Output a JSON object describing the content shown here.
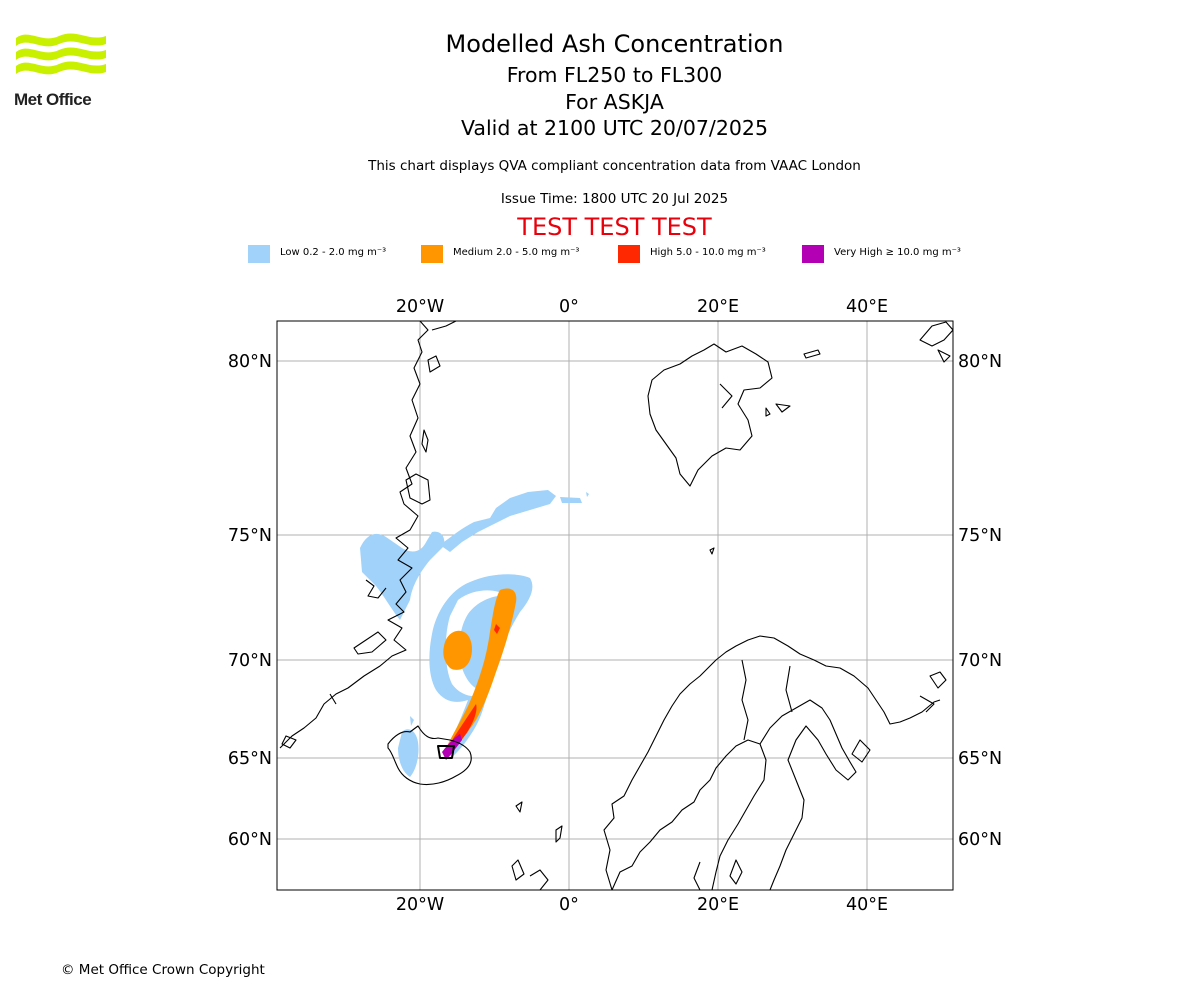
{
  "header": {
    "title": "Modelled Ash Concentration",
    "level_range": "From FL250 to FL300",
    "volcano": "For ASKJA",
    "valid_time": "Valid at 2100 UTC 20/07/2025",
    "data_note": "This chart displays QVA compliant concentration data from VAAC London",
    "issue_time": "Issue Time: 1800 UTC 20 Jul 2025",
    "test_banner": "TEST TEST TEST"
  },
  "logo": {
    "text": "Met Office",
    "color": "#c8f000"
  },
  "legend": [
    {
      "label": "Low 0.2 - 2.0 mg m⁻³",
      "color": "#a0d2fa"
    },
    {
      "label": "Medium 2.0 - 5.0 mg m⁻³",
      "color": "#ff9600"
    },
    {
      "label": "High 5.0 - 10.0 mg m⁻³",
      "color": "#ff2800"
    },
    {
      "label": "Very High ≥ 10.0 mg m⁻³",
      "color": "#b400b4"
    }
  ],
  "map": {
    "lon_labels": [
      "20°W",
      "0°",
      "20°E",
      "40°E"
    ],
    "lat_labels": [
      "80°N",
      "75°N",
      "70°N",
      "65°N",
      "60°N"
    ]
  },
  "footer": {
    "copyright": "© Met Office Crown Copyright"
  }
}
